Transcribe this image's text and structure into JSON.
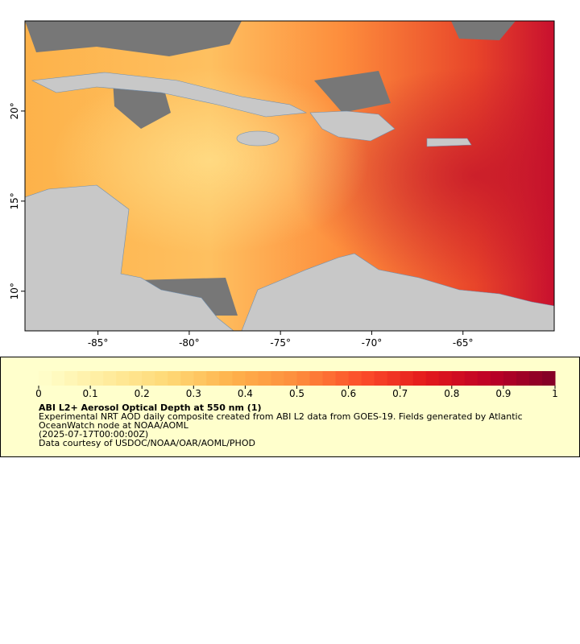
{
  "chart_data": {
    "type": "map",
    "xlim": [
      -89,
      -60
    ],
    "ylim": [
      7.8,
      25
    ],
    "xticks": [
      {
        "value": -85,
        "label": "-85°"
      },
      {
        "value": -80,
        "label": "-80°"
      },
      {
        "value": -75,
        "label": "-75°"
      },
      {
        "value": -70,
        "label": "-70°"
      },
      {
        "value": -65,
        "label": "-65°"
      }
    ],
    "yticks": [
      {
        "value": 10,
        "label": "10°"
      },
      {
        "value": 15,
        "label": "15°"
      },
      {
        "value": 20,
        "label": "20°"
      }
    ],
    "colorbar": {
      "lim": [
        0,
        1
      ],
      "ticks": [
        0,
        0.1,
        0.2,
        0.3,
        0.4,
        0.5,
        0.6,
        0.7,
        0.8,
        0.9,
        1
      ],
      "colors": [
        "#ffffcc",
        "#ffeda0",
        "#fed976",
        "#feb24c",
        "#fd8d3c",
        "#fc4e2a",
        "#e31a1c",
        "#bd0026",
        "#800026"
      ]
    },
    "legend": {
      "title": "ABI L2+ Aerosol Optical Depth at 550 nm (1)",
      "lines": [
        "Experimental NRT AOD daily composite created from ABI L2 data from GOES-19. Fields generated by Atlantic OceanWatch node at NOAA/AOML",
        "(2025-07-17T00:00:00Z)",
        "Data courtesy of USDOC/NOAA/OAR/AOML/PHOD"
      ]
    }
  }
}
